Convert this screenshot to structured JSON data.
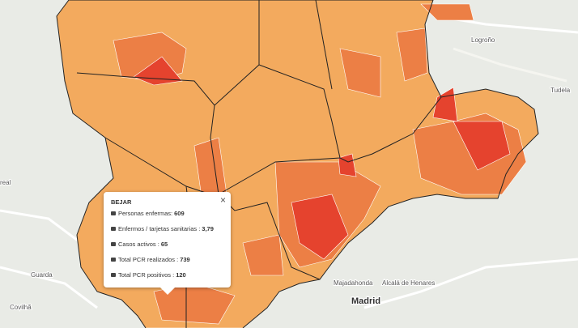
{
  "popup": {
    "title": "BEJAR",
    "close": "×",
    "rows": [
      {
        "label": "Personas enfermas:",
        "value": "609"
      },
      {
        "label": "Enfermos / tarjetas sanitarias :",
        "value": "3,79"
      },
      {
        "label": "Casos activos :",
        "value": "65"
      },
      {
        "label": "Total PCR realizados :",
        "value": "739"
      },
      {
        "label": "Total PCR positivos :",
        "value": "120"
      }
    ]
  },
  "places": [
    "Logroño",
    "Tudela",
    "real",
    "Guarda",
    "Covilhã",
    "Majadahonda",
    "Alcalá de Henares",
    "Madrid"
  ]
}
